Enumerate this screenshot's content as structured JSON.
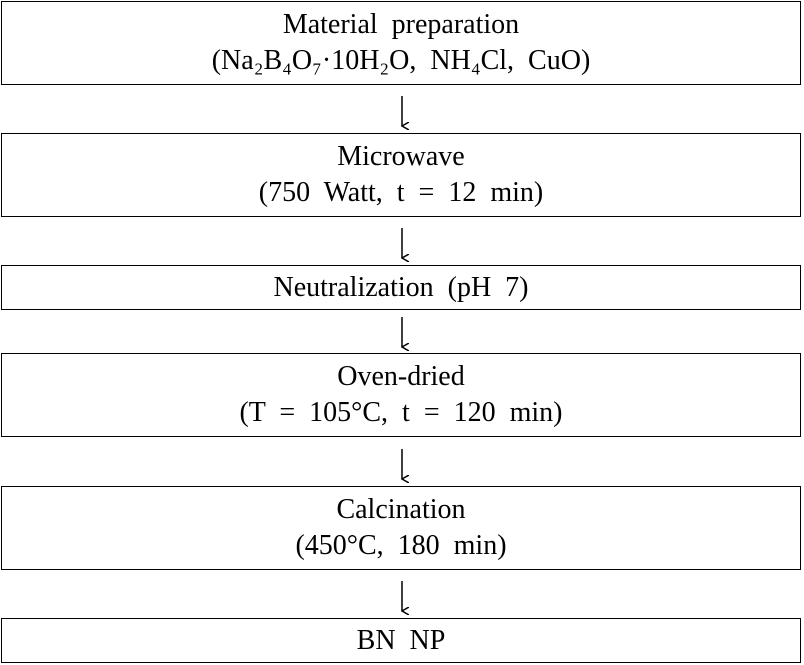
{
  "nodes": [
    {
      "lines": [
        "Material  preparation",
        "(Na₂B₄O₇·10H₂O,  NH₄Cl,  CuO)"
      ]
    },
    {
      "lines": [
        "Microwave",
        "(750  Watt,  t  =  12  min)"
      ]
    },
    {
      "lines": [
        "Neutralization  (pH  7)"
      ]
    },
    {
      "lines": [
        "Oven-dried",
        "(T  =  105°C,  t  =  120  min)"
      ]
    },
    {
      "lines": [
        "Calcination",
        "(450°C,  180  min)"
      ]
    },
    {
      "lines": [
        "BN  NP"
      ]
    }
  ]
}
